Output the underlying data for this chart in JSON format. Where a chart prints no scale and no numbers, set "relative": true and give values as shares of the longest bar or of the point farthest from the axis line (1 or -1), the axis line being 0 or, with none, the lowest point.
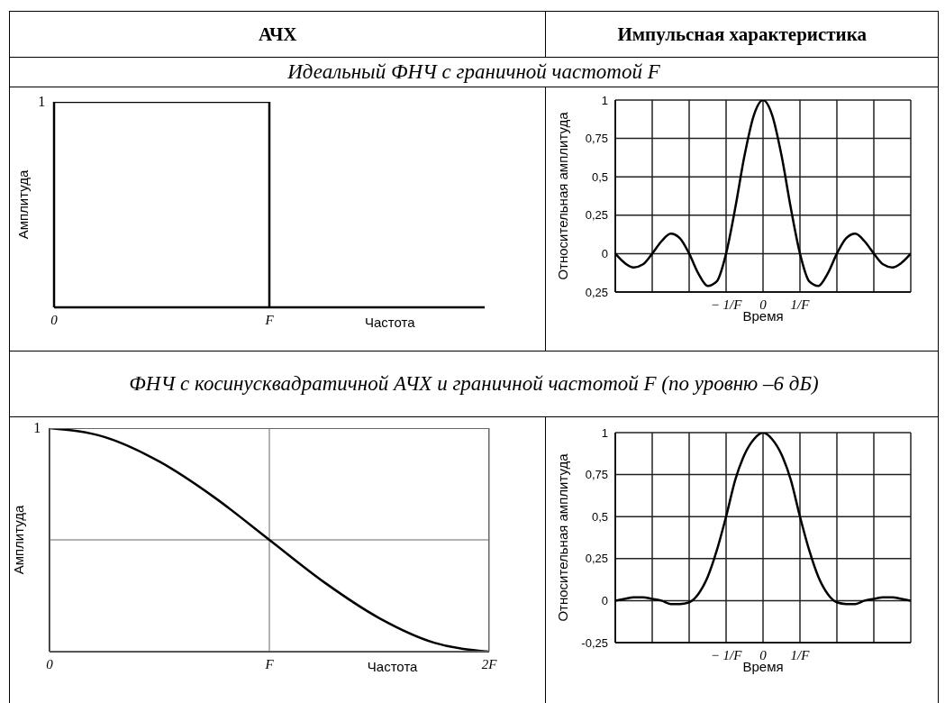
{
  "chart_data": [
    {
      "type": "step",
      "relative": true,
      "title": "Идеальный ФНЧ  с граничной частотой F",
      "annotations": [
        "АЧХ",
        "1"
      ],
      "xlabel": "Частота",
      "ylabel": "Амплитуда",
      "categories": [
        "0",
        "F",
        null
      ],
      "values": [
        1,
        0,
        null
      ],
      "color": "#000000"
    },
    {
      "type": "line",
      "annotations": [
        "Импульсная характеристика"
      ],
      "xlabel": "Время",
      "ylabel": "Относительная амплитуда",
      "x": [
        -4,
        -3.75,
        -3.5,
        -3.25,
        -3,
        -2.75,
        -2.5,
        -2.25,
        -2,
        -1.75,
        -1.5,
        -1.25,
        -1,
        -0.75,
        -0.5,
        -0.25,
        0,
        0.25,
        0.5,
        0.75,
        1,
        1.25,
        1.5,
        1.75,
        2,
        2.25,
        2.5,
        2.75,
        3,
        3.25,
        3.5,
        3.75,
        4
      ],
      "values": [
        0,
        -0.06,
        -0.09,
        -0.07,
        0,
        0.08,
        0.13,
        0.1,
        0,
        -0.13,
        -0.21,
        -0.18,
        0,
        0.3,
        0.64,
        0.9,
        1,
        0.9,
        0.64,
        0.3,
        0,
        -0.18,
        -0.21,
        -0.13,
        0,
        0.1,
        0.13,
        0.08,
        0,
        -0.07,
        -0.09,
        -0.06,
        0
      ],
      "color": "#000000",
      "xlim": [
        -4,
        4
      ],
      "xticks": [
        {
          "value": -4,
          "label": null
        },
        {
          "value": -3,
          "label": null
        },
        {
          "value": -2,
          "label": null
        },
        {
          "value": -1,
          "label": "− 1/F"
        },
        0,
        {
          "value": 1,
          "label": "1/F"
        },
        {
          "value": 2,
          "label": null
        },
        {
          "value": 3,
          "label": null
        },
        {
          "value": 4,
          "label": null
        }
      ],
      "ylim": [
        -0.25,
        1
      ],
      "yticks": [
        {
          "value": -0.25,
          "label": "0,25"
        },
        {
          "value": 0,
          "label": "0"
        },
        {
          "value": 0.25,
          "label": "0,25"
        },
        {
          "value": 0.5,
          "label": "0,5"
        },
        {
          "value": 0.75,
          "label": "0,75"
        },
        {
          "value": 1,
          "label": "1"
        }
      ],
      "grid": true
    },
    {
      "type": "line",
      "relative": true,
      "title": "ФНЧ с косинусквадратичной АЧХ и граничной частотой F (по уровню –6 дБ)",
      "annotations": [
        "1"
      ],
      "xlabel": "Частота",
      "ylabel": "Амплитуда",
      "categories": [
        "0",
        null,
        null,
        null,
        "F",
        null,
        null,
        null,
        "2F"
      ],
      "values": [
        1,
        0.96,
        0.85,
        0.69,
        0.5,
        0.31,
        0.15,
        0.04,
        0
      ],
      "color": "#000000",
      "grid": "x",
      "ref_lines": [
        {
          "axis": "y",
          "value": 0.5,
          "color": "#666666"
        }
      ]
    },
    {
      "type": "line",
      "xlabel": "Время",
      "ylabel": "Относительная амплитуда",
      "x": [
        -4,
        -3.75,
        -3.5,
        -3.25,
        -3,
        -2.75,
        -2.5,
        -2.25,
        -2,
        -1.75,
        -1.5,
        -1.25,
        -1,
        -0.75,
        -0.5,
        -0.25,
        0,
        0.25,
        0.5,
        0.75,
        1,
        1.25,
        1.5,
        1.75,
        2,
        2.25,
        2.5,
        2.75,
        3,
        3.25,
        3.5,
        3.75,
        4
      ],
      "values": [
        0,
        0.01,
        0.02,
        0.02,
        0.01,
        0,
        -0.02,
        -0.02,
        -0.01,
        0.04,
        0.14,
        0.3,
        0.5,
        0.72,
        0.87,
        0.96,
        1,
        0.96,
        0.87,
        0.72,
        0.5,
        0.3,
        0.14,
        0.04,
        -0.01,
        -0.02,
        -0.02,
        0,
        0.01,
        0.02,
        0.02,
        0.01,
        0
      ],
      "color": "#000000",
      "xlim": [
        -4,
        4
      ],
      "xticks": [
        {
          "value": -4,
          "label": null
        },
        {
          "value": -3,
          "label": null
        },
        {
          "value": -2,
          "label": null
        },
        {
          "value": -1,
          "label": "− 1/F"
        },
        0,
        {
          "value": 1,
          "label": "1/F"
        },
        {
          "value": 2,
          "label": null
        },
        {
          "value": 3,
          "label": null
        },
        {
          "value": 4,
          "label": null
        }
      ],
      "ylim": [
        -0.25,
        1
      ],
      "yticks": [
        {
          "value": -0.25,
          "label": "-0,25"
        },
        {
          "value": 0,
          "label": "0"
        },
        {
          "value": 0.25,
          "label": "0,25"
        },
        {
          "value": 0.5,
          "label": "0,5"
        },
        {
          "value": 0.75,
          "label": "0,75"
        },
        {
          "value": 1,
          "label": "1"
        }
      ],
      "grid": true
    }
  ]
}
